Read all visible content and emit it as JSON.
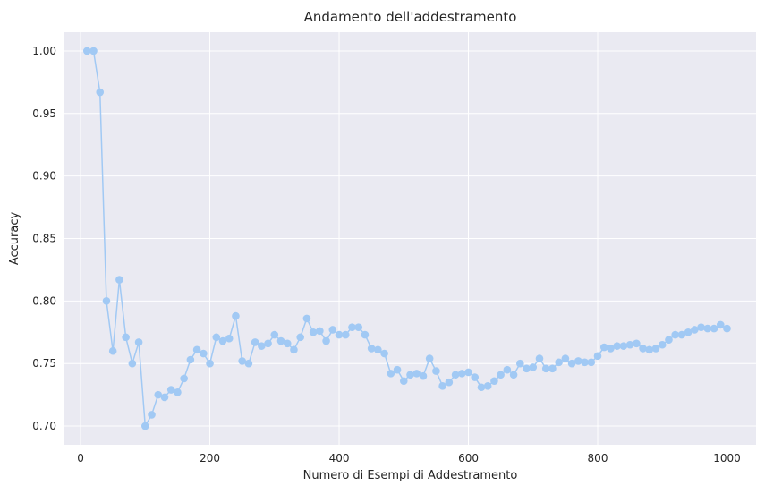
{
  "chart_data": {
    "type": "line",
    "title": "Andamento dell'addestramento",
    "xlabel": "Numero di Esempi di Addestramento",
    "ylabel": "Accuracy",
    "xlim": [
      -25,
      1045
    ],
    "ylim": [
      0.685,
      1.015
    ],
    "xticks": [
      0,
      200,
      400,
      600,
      800,
      1000
    ],
    "yticks": [
      0.7,
      0.75,
      0.8,
      0.85,
      0.9,
      0.95,
      1.0
    ],
    "xtick_labels": [
      "0",
      "200",
      "400",
      "600",
      "800",
      "1000"
    ],
    "ytick_labels": [
      "0.70",
      "0.75",
      "0.80",
      "0.85",
      "0.90",
      "0.95",
      "1.00"
    ],
    "grid": true,
    "background_color": "#eaeaf2",
    "series_color": "#a1c9f4",
    "marker": "circle",
    "series": [
      {
        "x": [
          10,
          20,
          30,
          40,
          50,
          60,
          70,
          80,
          90,
          100,
          110,
          120,
          130,
          140,
          150,
          160,
          170,
          180,
          190,
          200,
          210,
          220,
          230,
          240,
          250,
          260,
          270,
          280,
          290,
          300,
          310,
          320,
          330,
          340,
          350,
          360,
          370,
          380,
          390,
          400,
          410,
          420,
          430,
          440,
          450,
          460,
          470,
          480,
          490,
          500,
          510,
          520,
          530,
          540,
          550,
          560,
          570,
          580,
          590,
          600,
          610,
          620,
          630,
          640,
          650,
          660,
          670,
          680,
          690,
          700,
          710,
          720,
          730,
          740,
          750,
          760,
          770,
          780,
          790,
          800,
          810,
          820,
          830,
          840,
          850,
          860,
          870,
          880,
          890,
          900,
          910,
          920,
          930,
          940,
          950,
          960,
          970,
          980,
          990,
          1000
        ],
        "y": [
          1.0,
          1.0,
          0.967,
          0.8,
          0.76,
          0.817,
          0.771,
          0.75,
          0.767,
          0.7,
          0.709,
          0.725,
          0.723,
          0.729,
          0.727,
          0.738,
          0.753,
          0.761,
          0.758,
          0.75,
          0.771,
          0.768,
          0.77,
          0.788,
          0.752,
          0.75,
          0.767,
          0.764,
          0.766,
          0.773,
          0.768,
          0.766,
          0.761,
          0.771,
          0.786,
          0.775,
          0.776,
          0.768,
          0.777,
          0.773,
          0.773,
          0.779,
          0.779,
          0.773,
          0.762,
          0.761,
          0.758,
          0.742,
          0.745,
          0.736,
          0.741,
          0.742,
          0.74,
          0.754,
          0.744,
          0.732,
          0.735,
          0.741,
          0.742,
          0.743,
          0.739,
          0.731,
          0.732,
          0.736,
          0.741,
          0.745,
          0.741,
          0.75,
          0.746,
          0.747,
          0.754,
          0.746,
          0.746,
          0.751,
          0.754,
          0.75,
          0.752,
          0.751,
          0.751,
          0.756,
          0.763,
          0.762,
          0.764,
          0.764,
          0.765,
          0.766,
          0.762,
          0.761,
          0.762,
          0.765,
          0.769,
          0.773,
          0.773,
          0.775,
          0.777,
          0.779,
          0.778,
          0.778,
          0.781,
          0.778
        ]
      }
    ]
  }
}
